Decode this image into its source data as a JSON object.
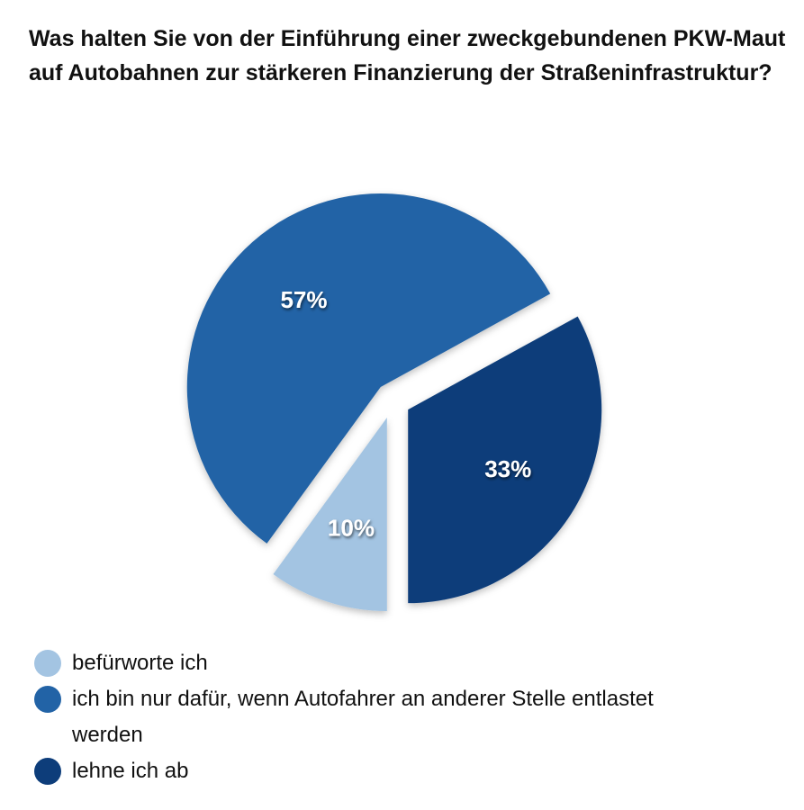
{
  "chart_data": {
    "type": "pie",
    "title": "Was halten Sie von der Einführung einer zweckgebundenen PKW-Maut auf Autobahnen zur stärkeren Finanzierung der Straßeninfrastruktur?",
    "slices": [
      {
        "label": "befürworte ich",
        "value": 10,
        "display": "10%",
        "color": "#a3c4e2"
      },
      {
        "label": "ich bin nur dafür, wenn Autofahrer an anderer Stelle entlastet werden",
        "value": 57,
        "display": "57%",
        "color": "#2263a6"
      },
      {
        "label": "lehne ich ab",
        "value": 33,
        "display": "33%",
        "color": "#0d3d7a"
      }
    ],
    "exploded": true,
    "legend": "bottom-left"
  }
}
